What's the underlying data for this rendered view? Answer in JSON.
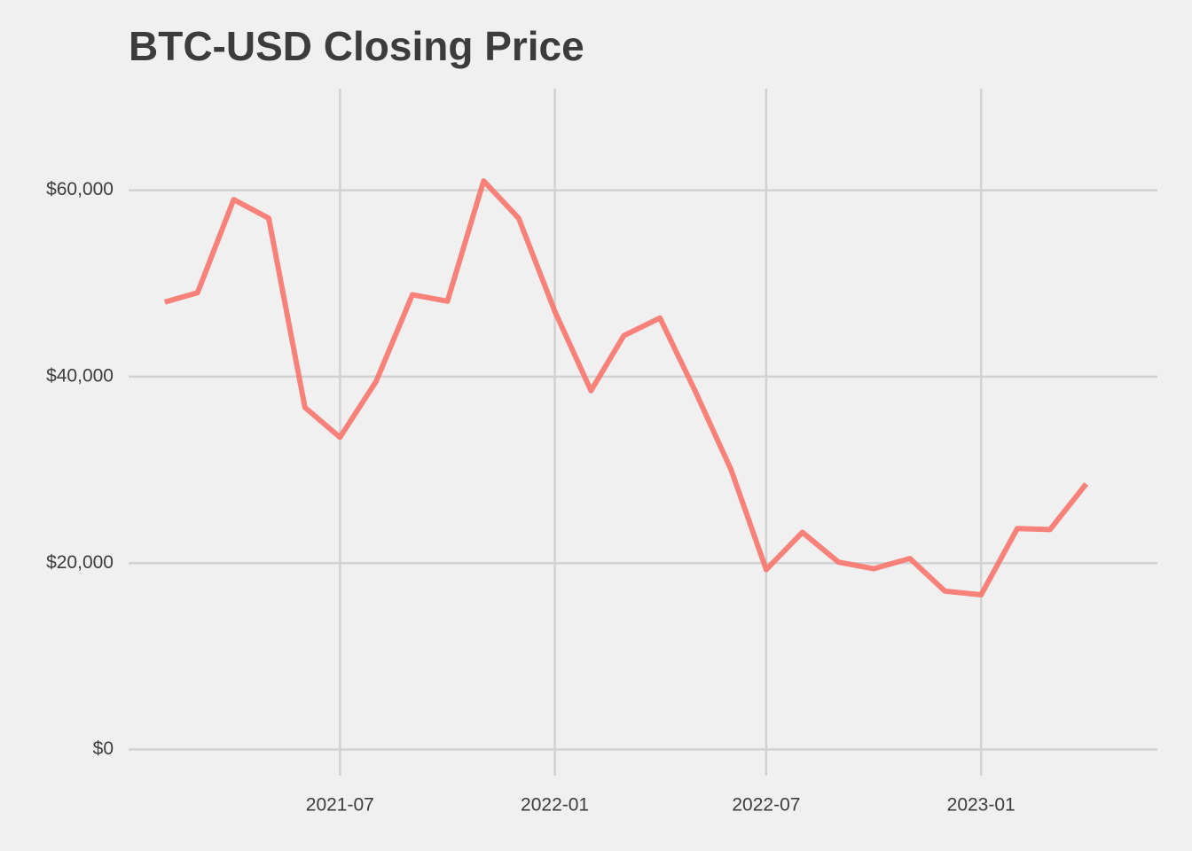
{
  "chart_data": {
    "type": "line",
    "title": "BTC-USD Closing Price",
    "x": [
      "2021-02",
      "2021-03",
      "2021-04",
      "2021-05",
      "2021-06",
      "2021-07",
      "2021-08",
      "2021-09",
      "2021-10",
      "2021-11",
      "2021-12",
      "2022-01",
      "2022-02",
      "2022-03",
      "2022-04",
      "2022-05",
      "2022-06",
      "2022-07",
      "2022-08",
      "2022-09",
      "2022-10",
      "2022-11",
      "2022-12",
      "2023-01",
      "2023-02",
      "2023-03",
      "2023-04"
    ],
    "series": [
      {
        "name": "BTC-USD",
        "color": "#f8766d",
        "values": [
          48000,
          49000,
          59000,
          57000,
          36700,
          33500,
          39500,
          48800,
          48100,
          61000,
          57000,
          47000,
          38500,
          44400,
          46300,
          38500,
          30000,
          19300,
          23300,
          20100,
          19400,
          20500,
          17000,
          16600,
          23700,
          23600,
          28500
        ]
      }
    ],
    "xlim": [
      "2021-01",
      "2023-06"
    ],
    "xticks": [
      {
        "value": "2021-07",
        "label": "2021-07"
      },
      {
        "value": "2022-01",
        "label": "2022-01"
      },
      {
        "value": "2022-07",
        "label": "2022-07"
      },
      {
        "value": "2023-01",
        "label": "2023-01"
      }
    ],
    "ylim": [
      -2800,
      70900
    ],
    "yticks": [
      {
        "value": 0,
        "label": "$0"
      },
      {
        "value": 20000,
        "label": "$20,000"
      },
      {
        "value": 40000,
        "label": "$40,000"
      },
      {
        "value": 60000,
        "label": "$60,000"
      }
    ],
    "grid": true
  }
}
